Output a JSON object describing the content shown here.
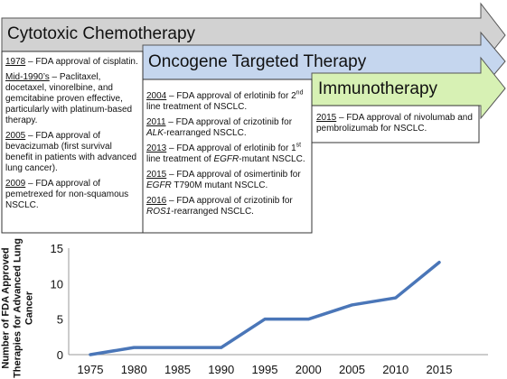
{
  "bands": {
    "cytotoxic": {
      "title": "Cytotoxic Chemotherapy",
      "fill": "#d2d2d2"
    },
    "targeted": {
      "title": "Oncogene Targeted Therapy",
      "fill": "#c5d6ee"
    },
    "immuno": {
      "title": "Immunotherapy",
      "fill": "#d7f1b4"
    }
  },
  "cytotoxic_entries": [
    {
      "year": "1978",
      "text": " – FDA approval of cisplatin."
    },
    {
      "year": "Mid-1990’s",
      "text": " – Paclitaxel, docetaxel, vinorelbine, and gemcitabine proven effective, particularly with platinum-based therapy."
    },
    {
      "year": "2005",
      "text": " – FDA approval of bevacizumab (first survival benefit in patients with advanced lung cancer)."
    },
    {
      "year": "2009",
      "text": " – FDA approval of pemetrexed for non-squamous NSCLC."
    }
  ],
  "targeted_entries": [
    {
      "year": "2004",
      "pre": " – FDA approval of erlotinib for 2",
      "sup": "nd",
      "post": " line treatment of NSCLC."
    },
    {
      "year": "2011",
      "pre": " – FDA approval of crizotinib for ",
      "ital": "ALK",
      "post": "-rearranged NSCLC."
    },
    {
      "year": "2013",
      "pre": " – FDA approval of erlotinib for 1",
      "sup": "st",
      "mid": " line treatment of ",
      "ital": "EGFR",
      "post": "-mutant NSCLC."
    },
    {
      "year": "2015",
      "pre": " – FDA approval of osimertinib for ",
      "ital": "EGFR",
      "post": " T790M mutant NSCLC."
    },
    {
      "year": "2016",
      "pre": " – FDA approval of crizotinib for ",
      "ital": "ROS1",
      "post": "-rearranged NSCLC."
    }
  ],
  "immuno_entries": [
    {
      "year": "2015",
      "text": " – FDA approval of nivolumab and pembrolizumab for NSCLC."
    }
  ],
  "chart_data": {
    "type": "line",
    "ylabel": "Number of FDA Approved Therapies for Advanced Lung Cancer",
    "xlabel": "",
    "x": [
      1975,
      1980,
      1985,
      1990,
      1995,
      2000,
      2005,
      2010,
      2015
    ],
    "series": [
      {
        "values": [
          0,
          1,
          1,
          1,
          5,
          5,
          7,
          8,
          13
        ],
        "color": "#4a76b8"
      }
    ],
    "xlim": [
      1975,
      2015
    ],
    "ylim": [
      0,
      15
    ],
    "yticks": [
      0,
      5,
      10,
      15
    ],
    "grid": false
  }
}
